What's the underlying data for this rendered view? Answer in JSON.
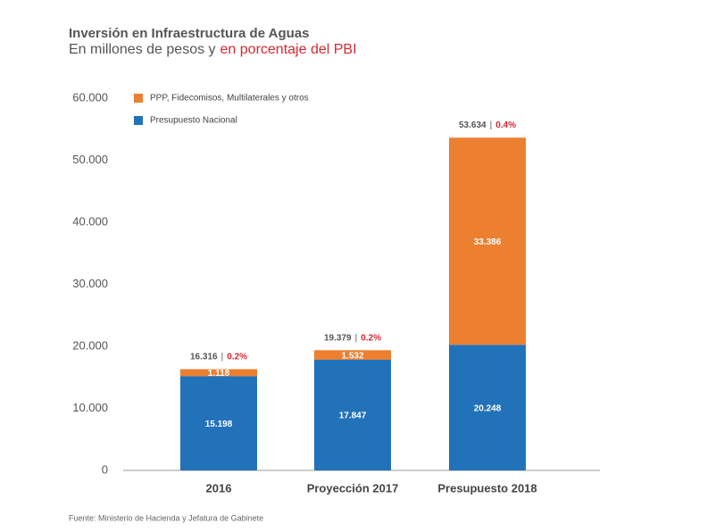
{
  "chart_data": {
    "type": "stacked_bar",
    "title": "Inversión en Infraestructura de Aguas",
    "subtitle": "En millones de pesos y",
    "subtitle_highlight": "en porcentaje del PBI",
    "source": "Fuente: Ministerio de Hacienda y Jefatura de Gabinete",
    "categories": [
      "2016",
      "Proyección 2017",
      "Presupuesto 2018"
    ],
    "series": [
      {
        "name": "Presupuesto Nacional",
        "color": "#2272b9",
        "values": [
          15198,
          17847,
          20248
        ],
        "value_labels": [
          "15.198",
          "17.847",
          "20.248"
        ]
      },
      {
        "name": "PPP, Fidecomisos, Multilaterales y otros",
        "color": "#ec7f30",
        "values": [
          1118,
          1532,
          33386
        ],
        "value_labels": [
          "1.118",
          "1.532",
          "33.386"
        ]
      }
    ],
    "totals": {
      "values": [
        16316,
        19379,
        53634
      ],
      "value_labels": [
        "16.316",
        "19.379",
        "53.634"
      ]
    },
    "total_separator": "|",
    "pbi_share": {
      "values": [
        0.2,
        0.2,
        0.4
      ],
      "value_labels": [
        "0.2%",
        "0.2%",
        "0.4%"
      ],
      "color": "#d7282f"
    },
    "ylim": [
      0,
      60000
    ],
    "yticks": [
      0,
      {
        "value": 10000,
        "label": "10.000"
      },
      {
        "value": 20000,
        "label": "20.000"
      },
      {
        "value": 30000,
        "label": "30.000"
      },
      {
        "value": 40000,
        "label": "40.000"
      },
      {
        "value": 50000,
        "label": "50.000"
      },
      {
        "value": 60000,
        "label": "60.000"
      }
    ],
    "grid": false,
    "legend": "top-left"
  }
}
